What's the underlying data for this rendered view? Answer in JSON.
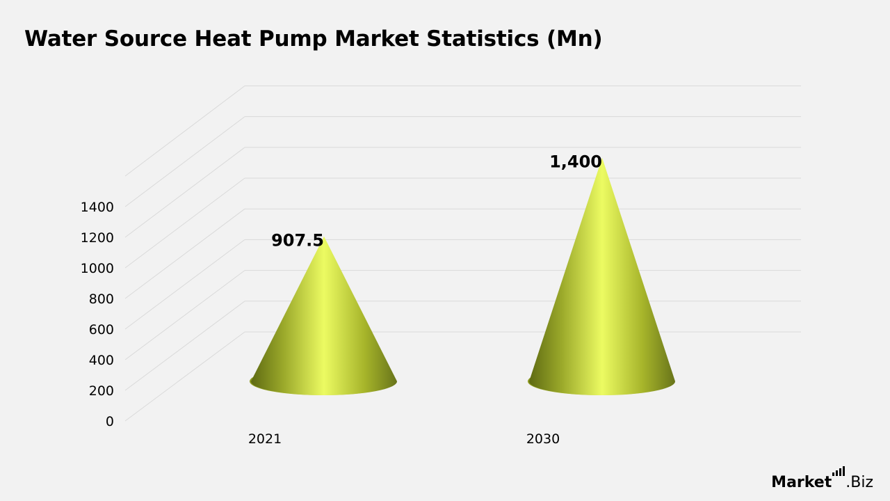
{
  "title": "Water Source Heat Pump Market Statistics (Mn)",
  "brand": {
    "name_bold": "Market",
    "name_rest": ".Biz"
  },
  "colors": {
    "cone_light": "#ecfb62",
    "cone_mid": "#b6c42a",
    "cone_dark": "#5e6a12",
    "grid": "#d9d9d9",
    "text": "#000000"
  },
  "chart_data": {
    "type": "bar",
    "shape": "3d-cone",
    "categories": [
      "2021",
      "2030"
    ],
    "values": [
      907.5,
      1400
    ],
    "data_labels": [
      "907.5",
      "1,400"
    ],
    "title": "Water Source Heat Pump Market Statistics (Mn)",
    "xlabel": "",
    "ylabel": "",
    "ylim": [
      0,
      1400
    ],
    "yticks": [
      0,
      200,
      400,
      600,
      800,
      1000,
      1200,
      1400
    ],
    "grid": true,
    "legend": "none"
  }
}
